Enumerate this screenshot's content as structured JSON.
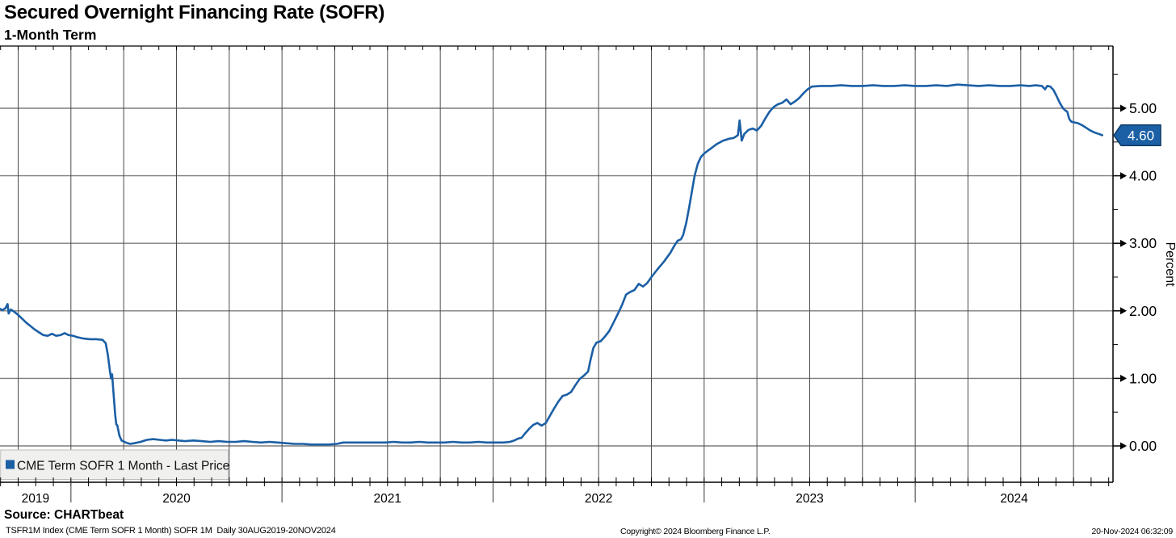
{
  "header": {
    "title": "Secured Overnight Financing Rate (SOFR)",
    "subtitle": "1-Month Term"
  },
  "footer": {
    "source": "Source: CHARTbeat",
    "ticker_line": "TSFR1M Index (CME Term SOFR 1 Month) SOFR 1M  Daily 30AUG2019-20NOV2024",
    "copyright": "Copyright© 2024 Bloomberg Finance L.P.",
    "timestamp": "20-Nov-2024 06:32:09"
  },
  "chart_data": {
    "type": "line",
    "title": "Secured Overnight Financing Rate (SOFR)",
    "subtitle": "1-Month Term",
    "xlabel": "",
    "ylabel": "Percent",
    "grid": true,
    "legend_position": "bottom-left",
    "legend": [
      {
        "name": "CME Term SOFR 1 Month - Last Price",
        "color": "#1b5fa5"
      }
    ],
    "last_price_label": "4.60",
    "last_price_value": 4.6,
    "x_domain": [
      2019.664,
      2024.937
    ],
    "y_axis_range": [
      -0.54,
      5.92
    ],
    "y_ticks_major": [
      0,
      1,
      2,
      3,
      4,
      5
    ],
    "y_tick_labels": [
      "0.00",
      "1.00",
      "2.00",
      "3.00",
      "4.00",
      "5.00"
    ],
    "y_minor_ticks": [
      0.5,
      1.5,
      2.5,
      3.5,
      4.5,
      5.5
    ],
    "x_year_labels": [
      "2019",
      "2020",
      "2021",
      "2022",
      "2023",
      "2024"
    ],
    "year_boundaries": [
      2020,
      2021,
      2022,
      2023,
      2024
    ],
    "quarter_grid_start": 2019.75,
    "quarter_grid_end": 2024.75,
    "colors": {
      "line": "#1b5fa5",
      "flag_fill": "#1b5fa5",
      "flag_border": "#0d3a66",
      "flag_text": "#ffffff",
      "h_grid": "#7d7d7d",
      "v_grid": "#4a4a4a",
      "axis": "#000000",
      "legend_bg": "#f0f0ee",
      "legend_border": "#bdbdbd",
      "legend_text": "#111111"
    },
    "series": [
      {
        "name": "CME Term SOFR 1 Month - Last Price",
        "color": "#1b5fa5",
        "points": [
          [
            2019.664,
            2.03
          ],
          [
            2019.675,
            2.01
          ],
          [
            2019.69,
            2.04
          ],
          [
            2019.7,
            2.1
          ],
          [
            2019.705,
            1.96
          ],
          [
            2019.715,
            2.02
          ],
          [
            2019.73,
            1.99
          ],
          [
            2019.75,
            1.94
          ],
          [
            2019.77,
            1.88
          ],
          [
            2019.79,
            1.82
          ],
          [
            2019.81,
            1.77
          ],
          [
            2019.83,
            1.72
          ],
          [
            2019.85,
            1.68
          ],
          [
            2019.87,
            1.64
          ],
          [
            2019.89,
            1.63
          ],
          [
            2019.91,
            1.66
          ],
          [
            2019.93,
            1.63
          ],
          [
            2019.95,
            1.64
          ],
          [
            2019.97,
            1.67
          ],
          [
            2019.99,
            1.64
          ],
          [
            2020.01,
            1.63
          ],
          [
            2020.03,
            1.61
          ],
          [
            2020.06,
            1.59
          ],
          [
            2020.09,
            1.58
          ],
          [
            2020.12,
            1.58
          ],
          [
            2020.15,
            1.57
          ],
          [
            2020.165,
            1.52
          ],
          [
            2020.175,
            1.35
          ],
          [
            2020.185,
            1.1
          ],
          [
            2020.19,
            1.0
          ],
          [
            2020.195,
            1.06
          ],
          [
            2020.2,
            0.85
          ],
          [
            2020.21,
            0.45
          ],
          [
            2020.215,
            0.32
          ],
          [
            2020.22,
            0.3
          ],
          [
            2020.23,
            0.15
          ],
          [
            2020.24,
            0.08
          ],
          [
            2020.26,
            0.05
          ],
          [
            2020.28,
            0.03
          ],
          [
            2020.3,
            0.04
          ],
          [
            2020.33,
            0.06
          ],
          [
            2020.36,
            0.09
          ],
          [
            2020.39,
            0.1
          ],
          [
            2020.42,
            0.09
          ],
          [
            2020.45,
            0.08
          ],
          [
            2020.48,
            0.09
          ],
          [
            2020.51,
            0.08
          ],
          [
            2020.54,
            0.07
          ],
          [
            2020.58,
            0.08
          ],
          [
            2020.62,
            0.07
          ],
          [
            2020.66,
            0.06
          ],
          [
            2020.7,
            0.07
          ],
          [
            2020.74,
            0.06
          ],
          [
            2020.78,
            0.06
          ],
          [
            2020.82,
            0.07
          ],
          [
            2020.86,
            0.06
          ],
          [
            2020.9,
            0.05
          ],
          [
            2020.94,
            0.06
          ],
          [
            2020.98,
            0.05
          ],
          [
            2021.02,
            0.04
          ],
          [
            2021.06,
            0.03
          ],
          [
            2021.1,
            0.03
          ],
          [
            2021.14,
            0.02
          ],
          [
            2021.18,
            0.02
          ],
          [
            2021.22,
            0.02
          ],
          [
            2021.26,
            0.03
          ],
          [
            2021.29,
            0.05
          ],
          [
            2021.33,
            0.05
          ],
          [
            2021.37,
            0.05
          ],
          [
            2021.41,
            0.05
          ],
          [
            2021.45,
            0.05
          ],
          [
            2021.49,
            0.05
          ],
          [
            2021.53,
            0.06
          ],
          [
            2021.57,
            0.05
          ],
          [
            2021.61,
            0.05
          ],
          [
            2021.65,
            0.06
          ],
          [
            2021.69,
            0.05
          ],
          [
            2021.73,
            0.05
          ],
          [
            2021.77,
            0.05
          ],
          [
            2021.81,
            0.06
          ],
          [
            2021.85,
            0.05
          ],
          [
            2021.89,
            0.05
          ],
          [
            2021.93,
            0.06
          ],
          [
            2021.97,
            0.05
          ],
          [
            2022.01,
            0.05
          ],
          [
            2022.05,
            0.05
          ],
          [
            2022.08,
            0.06
          ],
          [
            2022.1,
            0.08
          ],
          [
            2022.12,
            0.11
          ],
          [
            2022.135,
            0.12
          ],
          [
            2022.15,
            0.18
          ],
          [
            2022.17,
            0.25
          ],
          [
            2022.19,
            0.31
          ],
          [
            2022.21,
            0.34
          ],
          [
            2022.23,
            0.3
          ],
          [
            2022.25,
            0.34
          ],
          [
            2022.27,
            0.45
          ],
          [
            2022.29,
            0.56
          ],
          [
            2022.31,
            0.66
          ],
          [
            2022.33,
            0.74
          ],
          [
            2022.35,
            0.76
          ],
          [
            2022.37,
            0.8
          ],
          [
            2022.39,
            0.9
          ],
          [
            2022.41,
            0.99
          ],
          [
            2022.43,
            1.04
          ],
          [
            2022.45,
            1.1
          ],
          [
            2022.46,
            1.25
          ],
          [
            2022.475,
            1.45
          ],
          [
            2022.49,
            1.53
          ],
          [
            2022.51,
            1.55
          ],
          [
            2022.53,
            1.62
          ],
          [
            2022.55,
            1.7
          ],
          [
            2022.57,
            1.82
          ],
          [
            2022.59,
            1.95
          ],
          [
            2022.61,
            2.08
          ],
          [
            2022.63,
            2.24
          ],
          [
            2022.65,
            2.28
          ],
          [
            2022.67,
            2.31
          ],
          [
            2022.69,
            2.4
          ],
          [
            2022.71,
            2.36
          ],
          [
            2022.73,
            2.41
          ],
          [
            2022.75,
            2.5
          ],
          [
            2022.78,
            2.62
          ],
          [
            2022.81,
            2.73
          ],
          [
            2022.84,
            2.86
          ],
          [
            2022.86,
            2.97
          ],
          [
            2022.875,
            3.04
          ],
          [
            2022.89,
            3.06
          ],
          [
            2022.9,
            3.12
          ],
          [
            2022.915,
            3.3
          ],
          [
            2022.93,
            3.55
          ],
          [
            2022.945,
            3.82
          ],
          [
            2022.955,
            4.0
          ],
          [
            2022.97,
            4.18
          ],
          [
            2022.985,
            4.28
          ],
          [
            2023.0,
            4.33
          ],
          [
            2023.03,
            4.4
          ],
          [
            2023.06,
            4.47
          ],
          [
            2023.09,
            4.52
          ],
          [
            2023.12,
            4.55
          ],
          [
            2023.14,
            4.56
          ],
          [
            2023.16,
            4.6
          ],
          [
            2023.168,
            4.82
          ],
          [
            2023.178,
            4.52
          ],
          [
            2023.19,
            4.62
          ],
          [
            2023.21,
            4.68
          ],
          [
            2023.23,
            4.7
          ],
          [
            2023.25,
            4.67
          ],
          [
            2023.27,
            4.74
          ],
          [
            2023.29,
            4.85
          ],
          [
            2023.31,
            4.95
          ],
          [
            2023.33,
            5.02
          ],
          [
            2023.35,
            5.06
          ],
          [
            2023.37,
            5.08
          ],
          [
            2023.39,
            5.13
          ],
          [
            2023.41,
            5.06
          ],
          [
            2023.43,
            5.1
          ],
          [
            2023.45,
            5.15
          ],
          [
            2023.47,
            5.22
          ],
          [
            2023.49,
            5.28
          ],
          [
            2023.51,
            5.32
          ],
          [
            2023.55,
            5.33
          ],
          [
            2023.6,
            5.33
          ],
          [
            2023.65,
            5.34
          ],
          [
            2023.7,
            5.33
          ],
          [
            2023.75,
            5.33
          ],
          [
            2023.8,
            5.34
          ],
          [
            2023.85,
            5.33
          ],
          [
            2023.9,
            5.33
          ],
          [
            2023.95,
            5.34
          ],
          [
            2024.0,
            5.33
          ],
          [
            2024.05,
            5.33
          ],
          [
            2024.1,
            5.34
          ],
          [
            2024.15,
            5.33
          ],
          [
            2024.2,
            5.35
          ],
          [
            2024.25,
            5.34
          ],
          [
            2024.3,
            5.33
          ],
          [
            2024.35,
            5.34
          ],
          [
            2024.4,
            5.33
          ],
          [
            2024.45,
            5.33
          ],
          [
            2024.5,
            5.34
          ],
          [
            2024.54,
            5.33
          ],
          [
            2024.57,
            5.34
          ],
          [
            2024.6,
            5.33
          ],
          [
            2024.615,
            5.28
          ],
          [
            2024.625,
            5.33
          ],
          [
            2024.64,
            5.32
          ],
          [
            2024.655,
            5.27
          ],
          [
            2024.67,
            5.18
          ],
          [
            2024.685,
            5.08
          ],
          [
            2024.7,
            5.0
          ],
          [
            2024.71,
            4.97
          ],
          [
            2024.72,
            4.95
          ],
          [
            2024.73,
            4.84
          ],
          [
            2024.74,
            4.8
          ],
          [
            2024.755,
            4.79
          ],
          [
            2024.77,
            4.78
          ],
          [
            2024.79,
            4.75
          ],
          [
            2024.81,
            4.71
          ],
          [
            2024.83,
            4.67
          ],
          [
            2024.85,
            4.64
          ],
          [
            2024.87,
            4.62
          ],
          [
            2024.886,
            4.6
          ]
        ]
      }
    ]
  }
}
